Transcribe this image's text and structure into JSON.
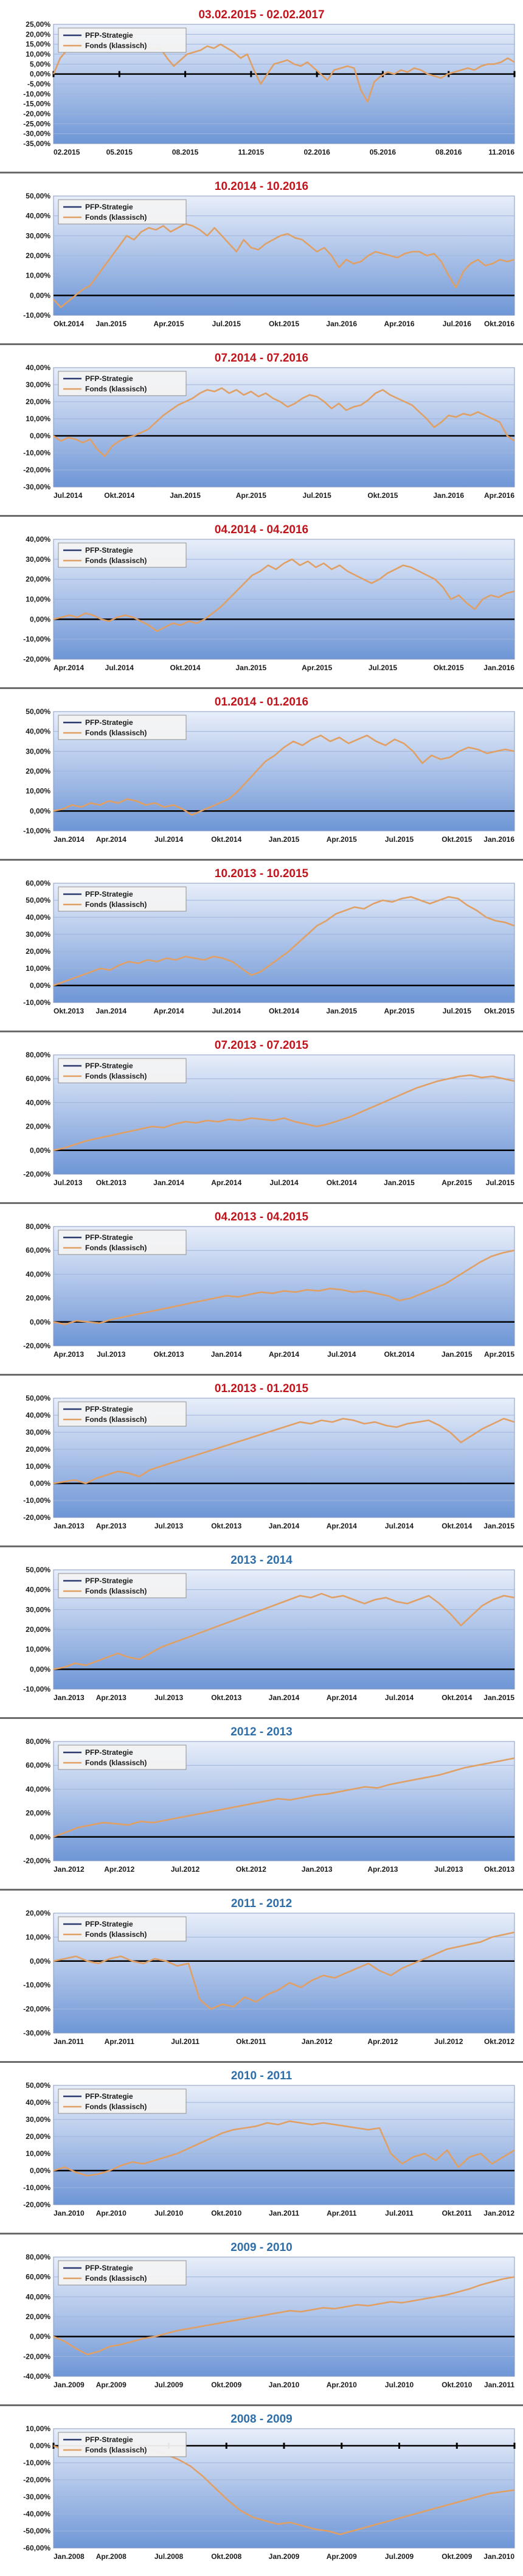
{
  "colors": {
    "title_red": "#c0141c",
    "title_blue": "#2e6ea8",
    "plot_top": "#e8eefa",
    "plot_bottom": "#6e96d6",
    "grid": "#9fb4dc",
    "series_strategy": "#2a3a6e",
    "series_fonds": "#e0a065",
    "zero_line": "#000000",
    "frame": "#8a9ac0"
  },
  "chart_data": [
    {
      "type": "line",
      "title": "03.02.2015 - 02.02.2017",
      "title_color": "red",
      "legend": [
        "PFP-Strategie",
        "Fonds (klassisch)"
      ],
      "legend_position": "top-left",
      "ylim": [
        -35,
        25
      ],
      "yticks": [
        25,
        20,
        15,
        10,
        5,
        0,
        -5,
        -10,
        -15,
        -20,
        -25,
        -30,
        -35
      ],
      "xticks": [
        "02.2015",
        "05.2015",
        "08.2015",
        "11.2015",
        "02.2016",
        "05.2016",
        "08.2016",
        "11.2016"
      ],
      "xtick_marks": true,
      "series_values": [
        0,
        8,
        12,
        14,
        16,
        17,
        18,
        16,
        17,
        19,
        18,
        20,
        17,
        15,
        14,
        12,
        13,
        8,
        4,
        7,
        10,
        11,
        12,
        14,
        13,
        15,
        13,
        11,
        8,
        10,
        2,
        -5,
        0,
        5,
        6,
        7,
        5,
        4,
        6,
        3,
        0,
        -3,
        2,
        3,
        4,
        3,
        -8,
        -14,
        -4,
        -1,
        1,
        0,
        2,
        1,
        3,
        2,
        0,
        -1,
        -2,
        0,
        1,
        2,
        3,
        2,
        4,
        5,
        5,
        6,
        8,
        6
      ]
    },
    {
      "type": "line",
      "title": "10.2014 - 10.2016",
      "title_color": "red",
      "legend": [
        "PFP-Strategie",
        "Fonds (klassisch)"
      ],
      "legend_position": "top-left",
      "ylim": [
        -10,
        50
      ],
      "yticks": [
        50,
        40,
        30,
        20,
        10,
        0,
        -10
      ],
      "xticks": [
        "Okt.2014",
        "Jan.2015",
        "Apr.2015",
        "Jul.2015",
        "Okt.2015",
        "Jan.2016",
        "Apr.2016",
        "Jul.2016",
        "Okt.2016"
      ],
      "series_values": [
        -2,
        -6,
        -3,
        0,
        3,
        5,
        10,
        15,
        20,
        25,
        30,
        28,
        32,
        34,
        33,
        35,
        32,
        34,
        36,
        35,
        33,
        30,
        34,
        30,
        26,
        22,
        28,
        24,
        23,
        26,
        28,
        30,
        31,
        29,
        28,
        25,
        22,
        24,
        20,
        14,
        18,
        16,
        17,
        20,
        22,
        21,
        20,
        19,
        21,
        22,
        22,
        20,
        21,
        17,
        10,
        4,
        12,
        16,
        18,
        15,
        16,
        18,
        17,
        18
      ]
    },
    {
      "type": "line",
      "title": "07.2014 - 07.2016",
      "title_color": "red",
      "legend": [
        "PFP-Strategie",
        "Fonds (klassisch)"
      ],
      "legend_position": "top-left",
      "ylim": [
        -30,
        40
      ],
      "yticks": [
        40,
        30,
        20,
        10,
        0,
        -10,
        -20,
        -30
      ],
      "xticks": [
        "Jul.2014",
        "Okt.2014",
        "Jan.2015",
        "Apr.2015",
        "Jul.2015",
        "Okt.2015",
        "Jan.2016",
        "Apr.2016"
      ],
      "series_values": [
        0,
        -3,
        -1,
        -2,
        -4,
        -2,
        -8,
        -12,
        -6,
        -3,
        -1,
        0,
        2,
        4,
        8,
        12,
        15,
        18,
        20,
        22,
        25,
        27,
        26,
        28,
        25,
        27,
        24,
        26,
        23,
        25,
        22,
        20,
        17,
        19,
        22,
        24,
        23,
        20,
        16,
        19,
        15,
        17,
        18,
        21,
        25,
        27,
        24,
        22,
        20,
        18,
        14,
        10,
        5,
        8,
        12,
        11,
        13,
        12,
        14,
        12,
        10,
        8,
        0,
        -3
      ]
    },
    {
      "type": "line",
      "title": "04.2014 - 04.2016",
      "title_color": "red",
      "legend": [
        "PFP-Strategie",
        "Fonds (klassisch)"
      ],
      "legend_position": "top-left",
      "ylim": [
        -20,
        40
      ],
      "yticks": [
        40,
        30,
        20,
        10,
        0,
        -10,
        -20
      ],
      "xticks": [
        "Apr.2014",
        "Jul.2014",
        "Okt.2014",
        "Jan.2015",
        "Apr.2015",
        "Jul.2015",
        "Okt.2015",
        "Jan.2016"
      ],
      "series_values": [
        0,
        1,
        2,
        1,
        3,
        2,
        0,
        -1,
        1,
        2,
        1,
        -1,
        -3,
        -6,
        -4,
        -2,
        -3,
        -1,
        -2,
        0,
        3,
        6,
        10,
        14,
        18,
        22,
        24,
        27,
        25,
        28,
        30,
        27,
        29,
        26,
        28,
        25,
        27,
        24,
        22,
        20,
        18,
        20,
        23,
        25,
        27,
        26,
        24,
        22,
        20,
        16,
        10,
        12,
        8,
        5,
        10,
        12,
        11,
        13,
        14
      ]
    },
    {
      "type": "line",
      "title": "01.2014 - 01.2016",
      "title_color": "red",
      "legend": [
        "PFP-Strategie",
        "Fonds (klassisch)"
      ],
      "legend_position": "top-left",
      "ylim": [
        -10,
        50
      ],
      "yticks": [
        50,
        40,
        30,
        20,
        10,
        0,
        -10
      ],
      "xticks": [
        "Jan.2014",
        "Apr.2014",
        "Jul.2014",
        "Okt.2014",
        "Jan.2015",
        "Apr.2015",
        "Jul.2015",
        "Okt.2015",
        "Jan.2016"
      ],
      "series_values": [
        0,
        1,
        3,
        2,
        4,
        3,
        5,
        4,
        6,
        5,
        3,
        4,
        2,
        3,
        1,
        -2,
        0,
        2,
        4,
        6,
        10,
        15,
        20,
        25,
        28,
        32,
        35,
        33,
        36,
        38,
        35,
        37,
        34,
        36,
        38,
        35,
        33,
        36,
        34,
        30,
        24,
        28,
        26,
        27,
        30,
        32,
        31,
        29,
        30,
        31,
        30
      ]
    },
    {
      "type": "line",
      "title": "10.2013 - 10.2015",
      "title_color": "red",
      "legend": [
        "PFP-Strategie",
        "Fonds (klassisch)"
      ],
      "legend_position": "top-left",
      "ylim": [
        -10,
        60
      ],
      "yticks": [
        60,
        50,
        40,
        30,
        20,
        10,
        0,
        -10
      ],
      "xticks": [
        "Okt.2013",
        "Jan.2014",
        "Apr.2014",
        "Jul.2014",
        "Okt.2014",
        "Jan.2015",
        "Apr.2015",
        "Jul.2015",
        "Okt.2015"
      ],
      "series_values": [
        0,
        2,
        4,
        6,
        8,
        10,
        9,
        12,
        14,
        13,
        15,
        14,
        16,
        15,
        17,
        16,
        15,
        17,
        16,
        14,
        10,
        6,
        8,
        12,
        16,
        20,
        25,
        30,
        35,
        38,
        42,
        44,
        46,
        45,
        48,
        50,
        49,
        51,
        52,
        50,
        48,
        50,
        52,
        51,
        47,
        44,
        40,
        38,
        37,
        35
      ]
    },
    {
      "type": "line",
      "title": "07.2013 - 07.2015",
      "title_color": "red",
      "legend": [
        "PFP-Strategie",
        "Fonds (klassisch)"
      ],
      "legend_position": "top-left",
      "ylim": [
        -20,
        80
      ],
      "yticks": [
        80,
        60,
        40,
        20,
        0,
        -20
      ],
      "xticks": [
        "Jul.2013",
        "Okt.2013",
        "Jan.2014",
        "Apr.2014",
        "Jul.2014",
        "Okt.2014",
        "Jan.2015",
        "Apr.2015",
        "Jul.2015"
      ],
      "series_values": [
        0,
        2,
        5,
        8,
        10,
        12,
        14,
        16,
        18,
        20,
        19,
        22,
        24,
        23,
        25,
        24,
        26,
        25,
        27,
        26,
        25,
        27,
        24,
        22,
        20,
        22,
        25,
        28,
        32,
        36,
        40,
        44,
        48,
        52,
        55,
        58,
        60,
        62,
        63,
        61,
        62,
        60,
        58
      ]
    },
    {
      "type": "line",
      "title": "04.2013 - 04.2015",
      "title_color": "red",
      "legend": [
        "PFP-Strategie",
        "Fonds (klassisch)"
      ],
      "legend_position": "top-left",
      "ylim": [
        -20,
        80
      ],
      "yticks": [
        80,
        60,
        40,
        20,
        0,
        -20
      ],
      "xticks": [
        "Apr.2013",
        "Jul.2013",
        "Okt.2013",
        "Jan.2014",
        "Apr.2014",
        "Jul.2014",
        "Okt.2014",
        "Jan.2015",
        "Apr.2015"
      ],
      "series_values": [
        0,
        -2,
        1,
        0,
        -1,
        2,
        4,
        6,
        8,
        10,
        12,
        14,
        16,
        18,
        20,
        22,
        21,
        23,
        25,
        24,
        26,
        25,
        27,
        26,
        28,
        27,
        25,
        26,
        24,
        22,
        18,
        20,
        24,
        28,
        32,
        38,
        44,
        50,
        55,
        58,
        60
      ]
    },
    {
      "type": "line",
      "title": "01.2013 - 01.2015",
      "title_color": "red",
      "legend": [
        "PFP-Strategie",
        "Fonds (klassisch)"
      ],
      "legend_position": "top-left",
      "ylim": [
        -20,
        50
      ],
      "yticks": [
        50,
        40,
        30,
        20,
        10,
        0,
        -10,
        -20
      ],
      "xticks": [
        "Jan.2013",
        "Apr.2013",
        "Jul.2013",
        "Okt.2013",
        "Jan.2014",
        "Apr.2014",
        "Jul.2014",
        "Okt.2014",
        "Jan.2015"
      ],
      "series_values": [
        0,
        1,
        2,
        0,
        3,
        5,
        7,
        6,
        4,
        8,
        10,
        12,
        14,
        16,
        18,
        20,
        22,
        24,
        26,
        28,
        30,
        32,
        34,
        36,
        35,
        37,
        36,
        38,
        37,
        35,
        36,
        34,
        33,
        35,
        36,
        37,
        34,
        30,
        24,
        28,
        32,
        35,
        38,
        36
      ]
    },
    {
      "type": "line",
      "title": "2013 - 2014",
      "title_color": "blue",
      "legend": [
        "PFP-Strategie",
        "Fonds (klassisch)"
      ],
      "legend_position": "top-left",
      "ylim": [
        -10,
        50
      ],
      "yticks": [
        50,
        40,
        30,
        20,
        10,
        0,
        -10
      ],
      "xticks": [
        "Jan.2013",
        "Apr.2013",
        "Jul.2013",
        "Okt.2013",
        "Jan.2014",
        "Apr.2014",
        "Jul.2014",
        "Okt.2014",
        "Jan.2015"
      ],
      "series_values": [
        0,
        1,
        3,
        2,
        4,
        6,
        8,
        6,
        5,
        8,
        11,
        13,
        15,
        17,
        19,
        21,
        23,
        25,
        27,
        29,
        31,
        33,
        35,
        37,
        36,
        38,
        36,
        37,
        35,
        33,
        35,
        36,
        34,
        33,
        35,
        37,
        33,
        28,
        22,
        27,
        32,
        35,
        37,
        36
      ]
    },
    {
      "type": "line",
      "title": "2012 - 2013",
      "title_color": "blue",
      "legend": [
        "PFP-Strategie",
        "Fonds (klassisch)"
      ],
      "legend_position": "top-left",
      "ylim": [
        -20,
        80
      ],
      "yticks": [
        80,
        60,
        40,
        20,
        0,
        -20
      ],
      "xticks": [
        "Jan.2012",
        "Apr.2012",
        "Jul.2012",
        "Okt.2012",
        "Jan.2013",
        "Apr.2013",
        "Jul.2013",
        "Okt.2013"
      ],
      "series_values": [
        0,
        4,
        8,
        10,
        12,
        11,
        10,
        13,
        12,
        14,
        16,
        18,
        20,
        22,
        24,
        26,
        28,
        30,
        32,
        31,
        33,
        35,
        36,
        38,
        40,
        42,
        41,
        44,
        46,
        48,
        50,
        52,
        55,
        58,
        60,
        62,
        64,
        66
      ]
    },
    {
      "type": "line",
      "title": "2011 - 2012",
      "title_color": "blue",
      "legend": [
        "PFP-Strategie",
        "Fonds (klassisch)"
      ],
      "legend_position": "top-left",
      "ylim": [
        -30,
        20
      ],
      "yticks": [
        20,
        10,
        0,
        -10,
        -20,
        -30
      ],
      "xticks": [
        "Jan.2011",
        "Apr.2011",
        "Jul.2011",
        "Okt.2011",
        "Jan.2012",
        "Apr.2012",
        "Jul.2012",
        "Okt.2012"
      ],
      "series_values": [
        0,
        1,
        2,
        0,
        -1,
        1,
        2,
        0,
        -1,
        1,
        0,
        -2,
        -1,
        -16,
        -20,
        -18,
        -19,
        -15,
        -17,
        -14,
        -12,
        -9,
        -11,
        -8,
        -6,
        -7,
        -5,
        -3,
        -1,
        -4,
        -6,
        -3,
        -1,
        1,
        3,
        5,
        6,
        7,
        8,
        10,
        11,
        12
      ]
    },
    {
      "type": "line",
      "title": "2010 - 2011",
      "title_color": "blue",
      "legend": [
        "PFP-Strategie",
        "Fonds (klassisch)"
      ],
      "legend_position": "top-left",
      "ylim": [
        -20,
        50
      ],
      "yticks": [
        50,
        40,
        30,
        20,
        10,
        0,
        -10,
        -20
      ],
      "xticks": [
        "Jan.2010",
        "Apr.2010",
        "Jul.2010",
        "Okt.2010",
        "Jan.2011",
        "Apr.2011",
        "Jul.2011",
        "Okt.2011",
        "Jan.2012"
      ],
      "series_values": [
        0,
        2,
        -1,
        -3,
        -2,
        0,
        3,
        5,
        4,
        6,
        8,
        10,
        13,
        16,
        19,
        22,
        24,
        25,
        26,
        28,
        27,
        29,
        28,
        27,
        28,
        27,
        26,
        25,
        24,
        25,
        10,
        4,
        8,
        10,
        6,
        12,
        2,
        8,
        10,
        4,
        8,
        12
      ]
    },
    {
      "type": "line",
      "title": "2009 - 2010",
      "title_color": "blue",
      "legend": [
        "PFP-Strategie",
        "Fonds (klassisch)"
      ],
      "legend_position": "top-left",
      "ylim": [
        -40,
        80
      ],
      "yticks": [
        80,
        60,
        40,
        20,
        0,
        -20,
        -40
      ],
      "xticks": [
        "Jan.2009",
        "Apr.2009",
        "Jul.2009",
        "Okt.2009",
        "Jan.2010",
        "Apr.2010",
        "Jul.2010",
        "Okt.2010",
        "Jan.2011"
      ],
      "series_values": [
        0,
        -5,
        -12,
        -18,
        -15,
        -10,
        -8,
        -5,
        -2,
        0,
        3,
        6,
        8,
        10,
        12,
        14,
        16,
        18,
        20,
        22,
        24,
        26,
        25,
        27,
        29,
        28,
        30,
        32,
        31,
        33,
        35,
        34,
        36,
        38,
        40,
        42,
        45,
        48,
        52,
        55,
        58,
        60
      ]
    },
    {
      "type": "line",
      "title": "2008 - 2009",
      "title_color": "blue",
      "legend": [
        "PFP-Strategie",
        "Fonds (klassisch)"
      ],
      "legend_position": "top-left",
      "ylim": [
        -60,
        10
      ],
      "yticks": [
        10,
        0,
        -10,
        -20,
        -30,
        -40,
        -50,
        -60
      ],
      "xticks": [
        "Jan.2008",
        "Apr.2008",
        "Jul.2008",
        "Okt.2008",
        "Jan.2009",
        "Apr.2009",
        "Jul.2009",
        "Okt.2009",
        "Jan.2010"
      ],
      "xtick_marks": true,
      "series_values": [
        0,
        -3,
        -1,
        -5,
        -2,
        0,
        2,
        -1,
        -3,
        -5,
        -8,
        -12,
        -18,
        -25,
        -32,
        -38,
        -42,
        -44,
        -46,
        -45,
        -47,
        -49,
        -50,
        -52,
        -50,
        -48,
        -46,
        -44,
        -42,
        -40,
        -38,
        -36,
        -34,
        -32,
        -30,
        -28,
        -27,
        -26
      ]
    }
  ]
}
